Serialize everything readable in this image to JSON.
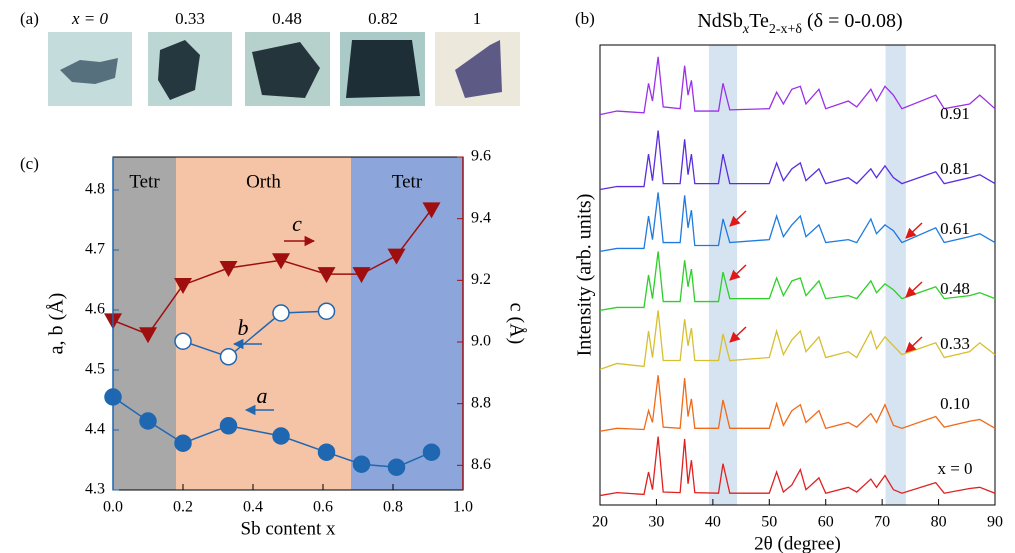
{
  "photos": {
    "label": "(a)",
    "captions": [
      "x = 0",
      "0.33",
      "0.48",
      "0.82",
      "1"
    ]
  },
  "chart_data": [
    {
      "type": "line",
      "panel_label": "(b)",
      "title": [
        "NdSb",
        "x",
        "Te",
        "2-x+δ",
        " (δ = 0-0.08)"
      ],
      "x_label": "2θ (degree)",
      "y_label": "Intensity (arb. units)",
      "xlim": [
        20,
        90
      ],
      "xticks": [
        20,
        30,
        40,
        50,
        60,
        70,
        80,
        90
      ],
      "ylim": [
        0,
        7.8
      ],
      "spans": [
        {
          "x0": 39.3,
          "x1": 44.3
        },
        {
          "x0": 70.6,
          "x1": 74.2
        }
      ],
      "span_color": "#d6e3f1",
      "x": [
        20,
        23,
        27.8,
        28.6,
        29.3,
        30.3,
        31.2,
        34.2,
        35,
        35.6,
        36.2,
        36.8,
        41,
        41.8,
        43,
        50,
        51.3,
        52.5,
        54,
        55.5,
        56.5,
        58.8,
        60,
        64,
        65.5,
        68,
        69,
        70.5,
        72,
        73.5,
        79.5,
        81,
        85.5,
        87.3,
        90
      ],
      "series": [
        {
          "name": "0.91",
          "color": "#9b30e8",
          "values": [
            6.62,
            6.68,
            6.65,
            7.15,
            6.85,
            7.6,
            6.75,
            6.72,
            7.45,
            6.95,
            7.2,
            6.68,
            6.68,
            7.15,
            6.7,
            6.72,
            7.0,
            6.8,
            7.05,
            7.1,
            6.8,
            7.05,
            6.72,
            6.85,
            6.75,
            7.05,
            6.85,
            7.1,
            6.95,
            6.72,
            6.95,
            6.72,
            6.8,
            6.95,
            6.72
          ]
        },
        {
          "name": "0.81",
          "color": "#5a2ee0",
          "values": [
            5.35,
            5.4,
            5.4,
            5.95,
            5.5,
            6.35,
            5.45,
            5.45,
            6.2,
            5.6,
            5.95,
            5.45,
            5.45,
            5.95,
            5.45,
            5.45,
            5.8,
            5.5,
            5.7,
            5.8,
            5.5,
            5.7,
            5.45,
            5.55,
            5.45,
            5.7,
            5.55,
            5.75,
            5.55,
            5.45,
            5.65,
            5.45,
            5.55,
            5.6,
            5.45
          ]
        },
        {
          "name": "0.61",
          "color": "#1f7be0",
          "values": [
            4.3,
            4.35,
            4.35,
            4.9,
            4.5,
            5.3,
            4.45,
            4.45,
            5.25,
            4.7,
            5.0,
            4.4,
            4.4,
            4.85,
            4.45,
            4.5,
            4.9,
            4.55,
            4.75,
            4.9,
            4.55,
            4.75,
            4.45,
            4.5,
            4.45,
            4.85,
            4.6,
            4.75,
            4.65,
            4.45,
            4.7,
            4.45,
            4.55,
            4.6,
            4.45
          ]
        },
        {
          "name": "0.48",
          "color": "#2ecf28",
          "values": [
            3.3,
            3.35,
            3.35,
            3.9,
            3.5,
            4.3,
            3.45,
            3.45,
            4.15,
            3.7,
            4.0,
            3.45,
            3.45,
            3.95,
            3.5,
            3.5,
            3.85,
            3.55,
            3.8,
            3.85,
            3.55,
            3.8,
            3.5,
            3.55,
            3.5,
            3.8,
            3.6,
            3.75,
            3.65,
            3.5,
            3.7,
            3.5,
            3.55,
            3.6,
            3.5
          ]
        },
        {
          "name": "0.33",
          "color": "#d8bf30",
          "values": [
            2.3,
            2.4,
            2.35,
            2.95,
            2.5,
            3.3,
            2.45,
            2.45,
            3.15,
            2.7,
            3.0,
            2.45,
            2.45,
            2.9,
            2.45,
            2.5,
            2.95,
            2.55,
            2.8,
            2.95,
            2.6,
            2.85,
            2.5,
            2.6,
            2.5,
            2.95,
            2.65,
            2.85,
            2.7,
            2.55,
            2.75,
            2.5,
            2.6,
            2.75,
            2.55
          ]
        },
        {
          "name": "0.10",
          "color": "#f06a1a",
          "values": [
            1.25,
            1.3,
            1.28,
            1.6,
            1.4,
            2.2,
            1.32,
            1.3,
            2.15,
            1.5,
            1.8,
            1.3,
            1.3,
            1.78,
            1.3,
            1.3,
            1.72,
            1.35,
            1.6,
            1.7,
            1.4,
            1.6,
            1.3,
            1.4,
            1.32,
            1.55,
            1.4,
            1.7,
            1.35,
            1.3,
            1.5,
            1.32,
            1.42,
            1.45,
            1.3
          ]
        },
        {
          "name": "x = 0",
          "color": "#e02020",
          "values": [
            0.16,
            0.21,
            0.18,
            0.56,
            0.26,
            1.16,
            0.22,
            0.21,
            1.12,
            0.36,
            0.76,
            0.21,
            0.2,
            0.7,
            0.2,
            0.2,
            0.56,
            0.22,
            0.34,
            0.6,
            0.26,
            0.46,
            0.2,
            0.3,
            0.22,
            0.44,
            0.3,
            0.5,
            0.26,
            0.2,
            0.38,
            0.2,
            0.28,
            0.3,
            0.2
          ]
        }
      ]
    },
    {
      "type": "line",
      "panel_label": "(c)",
      "x_label": "Sb content x",
      "y_label": "a, b (Å)",
      "y2_label": "c (Å)",
      "y_color": "#1f67b1",
      "y2_color": "#a00f10",
      "xlim": [
        0,
        1
      ],
      "xticks": [
        {
          "value": 0,
          "label": "0.0"
        },
        0.2,
        0.4,
        0.6,
        0.8,
        {
          "value": 1,
          "label": "1.0"
        }
      ],
      "ylim": [
        4.3,
        4.855
      ],
      "yticks": [
        4.3,
        4.4,
        4.5,
        4.6,
        4.7,
        4.8
      ],
      "y2lim": [
        8.52,
        9.6
      ],
      "y2ticks": [
        8.6,
        8.8,
        {
          "value": 9,
          "label": "9.0"
        },
        9.2,
        9.4,
        9.6
      ],
      "regions": [
        {
          "label": "Tetr",
          "x0": 0,
          "x1": 0.18,
          "color": "#a8a8a8"
        },
        {
          "label": "Orth",
          "x0": 0.18,
          "x1": 0.68,
          "color": "#f5c3a5"
        },
        {
          "label": "Tetr",
          "x0": 0.68,
          "x1": 1,
          "color": "#8ca6db"
        }
      ],
      "series": [
        {
          "name": "a",
          "color": "#1f67b1",
          "marker": "circle",
          "x": [
            0,
            0.1,
            0.2,
            0.33,
            0.48,
            0.61,
            0.71,
            0.81,
            0.91
          ],
          "values": [
            4.455,
            4.415,
            4.378,
            4.407,
            4.39,
            4.363,
            4.343,
            4.338,
            4.363
          ]
        },
        {
          "name": "b",
          "color": "#1f67b1",
          "marker": "open-circle",
          "x": [
            0.2,
            0.33,
            0.48,
            0.61
          ],
          "values": [
            4.548,
            4.522,
            4.595,
            4.598
          ]
        },
        {
          "name": "c",
          "color": "#a00f10",
          "marker": "triangle-down",
          "axis": "y2",
          "x": [
            0,
            0.1,
            0.2,
            0.33,
            0.48,
            0.61,
            0.71,
            0.81,
            0.91
          ],
          "values": [
            9.07,
            9.025,
            9.185,
            9.24,
            9.265,
            9.22,
            9.22,
            9.28,
            9.43
          ]
        }
      ]
    }
  ]
}
